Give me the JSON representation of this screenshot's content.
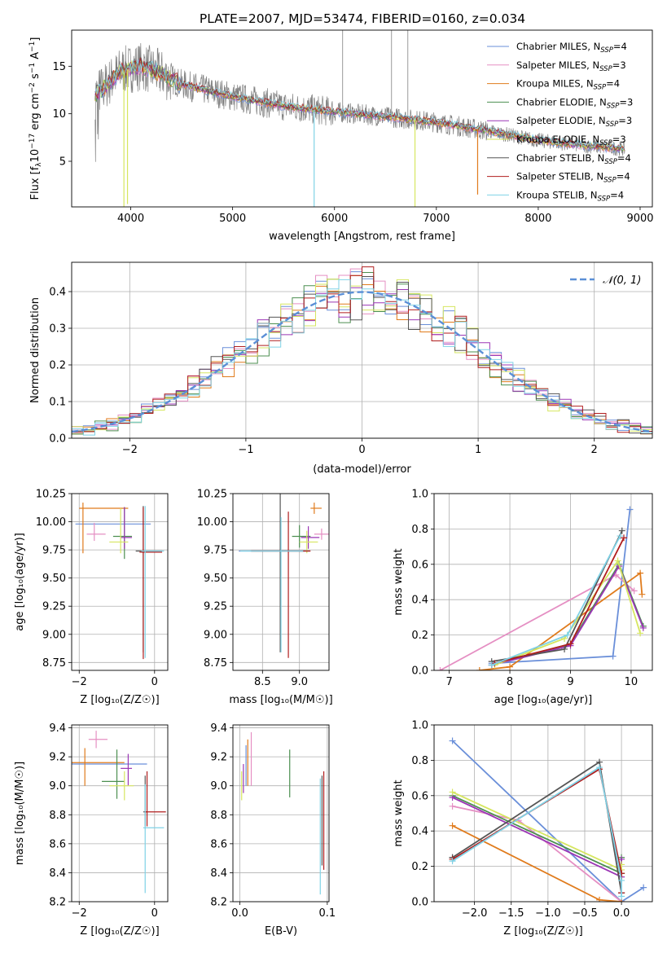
{
  "figure_title": "PLATE=2007, MJD=53474, FIBERID=0160, z=0.034",
  "series_names": [
    "Chabrier MILES",
    "Salpeter MILES",
    "Kroupa MILES",
    "Chabrier ELODIE",
    "Salpeter ELODIE",
    "Kroupa ELODIE",
    "Chabrier STELIB",
    "Salpeter STELIB",
    "Kroupa STELIB"
  ],
  "series_colors": [
    "#6a8fd9",
    "#e58fc3",
    "#e07b1c",
    "#4c8f50",
    "#9b36b5",
    "#d6e660",
    "#555555",
    "#b01e1e",
    "#7fd2e6"
  ],
  "chart_data": [
    {
      "id": "spectrum",
      "type": "line",
      "title": "PLATE=2007, MJD=53474, FIBERID=0160, z=0.034",
      "xlabel": "wavelength [Angstrom, rest frame]",
      "ylabel": "Flux [f_λ 10^-17 erg cm^-2 s^-1 A^-1]",
      "xlim": [
        3420,
        9120
      ],
      "ylim": [
        0.2,
        18.8
      ],
      "xticks": [
        4000,
        5000,
        6000,
        7000,
        8000,
        9000
      ],
      "yticks": [
        5,
        10,
        15
      ],
      "legend": "top-right",
      "legend_entries": [
        {
          "label": "Chabrier MILES",
          "nssp": "4"
        },
        {
          "label": "Salpeter MILES",
          "nssp": "3"
        },
        {
          "label": "Kroupa MILES",
          "nssp": "4"
        },
        {
          "label": "Chabrier ELODIE",
          "nssp": "3"
        },
        {
          "label": "Salpeter ELODIE",
          "nssp": "3"
        },
        {
          "label": "Kroupa ELODIE",
          "nssp": "3"
        },
        {
          "label": "Chabrier STELIB",
          "nssp": "4"
        },
        {
          "label": "Salpeter STELIB",
          "nssp": "4"
        },
        {
          "label": "Kroupa STELIB",
          "nssp": "4"
        }
      ],
      "continuum": {
        "x": [
          3650,
          3720,
          3900,
          4100,
          4300,
          4500,
          5000,
          5500,
          6000,
          6500,
          7000,
          7500,
          8000,
          8500,
          8850
        ],
        "y": [
          12.0,
          12.6,
          14.5,
          15.0,
          14.2,
          13.1,
          11.8,
          10.8,
          10.2,
          9.7,
          9.1,
          8.2,
          7.2,
          6.6,
          6.3
        ]
      },
      "absorption_lines": [
        {
          "x": 3933,
          "y": 0.2
        },
        {
          "x": 3968,
          "y": 0.5
        },
        {
          "x": 5800,
          "y": 0.2
        },
        {
          "x": 6790,
          "y": 0.2
        },
        {
          "x": 7405,
          "y": 1.5
        }
      ],
      "emission_spikes": [
        {
          "x": 6080,
          "y": 18.8
        },
        {
          "x": 6560,
          "y": 18.8
        },
        {
          "x": 6720,
          "y": 18.8
        }
      ]
    },
    {
      "id": "residuals",
      "type": "histogram",
      "xlabel": "(data-model)/error",
      "ylabel": "Normed distribution",
      "xlim": [
        -2.5,
        2.5
      ],
      "ylim": [
        0,
        0.48
      ],
      "xticks": [
        -2,
        -1,
        0,
        1,
        2
      ],
      "yticks": [
        0.0,
        0.1,
        0.2,
        0.3,
        0.4
      ],
      "bin_width": 0.1,
      "legend": "top-right",
      "reference_label": "𝒩(0, 1)"
    },
    {
      "id": "age_vs_Z",
      "type": "scatter",
      "xlabel": "Z [log₁₀(Z/Z☉)]",
      "ylabel": "age  [log₁₀(age/yr)]",
      "xlim": [
        -2.2,
        0.35
      ],
      "ylim": [
        8.68,
        10.25
      ],
      "xticks": [
        -2,
        0
      ],
      "yticks": [
        8.75,
        9.0,
        9.25,
        9.5,
        9.75,
        10.0,
        10.25
      ],
      "points": [
        {
          "x": -0.2,
          "y": 9.98,
          "xe": [
            1.9,
            0.1
          ],
          "ye": [
            0,
            0
          ]
        },
        {
          "x": -1.6,
          "y": 9.89,
          "xe": [
            0.2,
            0.3
          ],
          "ye": [
            0.06,
            0.1
          ]
        },
        {
          "x": -1.9,
          "y": 10.12,
          "xe": [
            0.1,
            1.2
          ],
          "ye": [
            0.4,
            0.05
          ]
        },
        {
          "x": -0.8,
          "y": 9.87,
          "xe": [
            0.3,
            0.2
          ],
          "ye": [
            0.2,
            0.26
          ]
        },
        {
          "x": -0.8,
          "y": 9.86,
          "xe": [
            0.1,
            0.2
          ],
          "ye": [
            0.1,
            0.27
          ]
        },
        {
          "x": -0.9,
          "y": 9.82,
          "xe": [
            0.3,
            0.2
          ],
          "ye": [
            0.1,
            0.3
          ]
        },
        {
          "x": -0.3,
          "y": 9.74,
          "xe": [
            0.2,
            0.5
          ],
          "ye": [
            0.9,
            0.4
          ]
        },
        {
          "x": -0.3,
          "y": 9.73,
          "xe": [
            0.1,
            0.5
          ],
          "ye": [
            0.95,
            0.4
          ]
        },
        {
          "x": -0.25,
          "y": 9.74,
          "xe": [
            0.1,
            0.5
          ],
          "ye": [
            0.95,
            0.4
          ]
        }
      ]
    },
    {
      "id": "age_vs_mass",
      "type": "scatter",
      "xlabel": "mass [log₁₀(M/M☉)]",
      "ylabel": "",
      "xlim": [
        8.1,
        9.4
      ],
      "ylim": [
        8.68,
        10.25
      ],
      "xticks": [
        8.5,
        9.0
      ],
      "yticks": [
        8.75,
        9.0,
        9.25,
        9.5,
        9.75,
        10.0,
        10.25
      ],
      "points": [
        {
          "x": 8.78,
          "y": 9.74,
          "xe": [
            0.6,
            0.3
          ],
          "ye": [
            0,
            0
          ]
        },
        {
          "x": 9.3,
          "y": 9.89,
          "xe": [
            0.1,
            0.1
          ],
          "ye": [
            0.05,
            0.05
          ]
        },
        {
          "x": 9.2,
          "y": 10.12,
          "xe": [
            0.05,
            0.1
          ],
          "ye": [
            0.05,
            0.05
          ]
        },
        {
          "x": 9.0,
          "y": 9.87,
          "xe": [
            0.1,
            0.15
          ],
          "ye": [
            0.1,
            0.1
          ]
        },
        {
          "x": 9.12,
          "y": 9.86,
          "xe": [
            0.1,
            0.15
          ],
          "ye": [
            0.1,
            0.1
          ]
        },
        {
          "x": 9.1,
          "y": 9.82,
          "xe": [
            0.1,
            0.15
          ],
          "ye": [
            0.1,
            0.1
          ]
        },
        {
          "x": 8.74,
          "y": 9.74,
          "xe": [
            0.4,
            0.4
          ],
          "ye": [
            0.9,
            2.4
          ]
        },
        {
          "x": 8.85,
          "y": 9.74,
          "xe": [
            0.5,
            0.3
          ],
          "ye": [
            0.95,
            0.35
          ]
        },
        {
          "x": 8.75,
          "y": 9.74,
          "xe": [
            0.55,
            0.3
          ],
          "ye": [
            0.9,
            0.3
          ]
        }
      ]
    },
    {
      "id": "weight_vs_age",
      "type": "line",
      "xlabel": "age  [log₁₀(age/yr)]",
      "ylabel": "mass weight",
      "xlim": [
        6.75,
        10.35
      ],
      "ylim": [
        0,
        1.0
      ],
      "xticks": [
        7,
        8,
        9,
        10
      ],
      "yticks": [
        0.0,
        0.2,
        0.4,
        0.6,
        0.8,
        1.0
      ],
      "series": [
        {
          "name": "Chabrier MILES",
          "x": [
            7.7,
            9.7,
            9.98
          ],
          "y": [
            0.04,
            0.08,
            0.91
          ]
        },
        {
          "name": "Salpeter MILES",
          "x": [
            6.85,
            9.75,
            10.05
          ],
          "y": [
            0.0,
            0.54,
            0.45
          ]
        },
        {
          "name": "Kroupa MILES",
          "x": [
            7.5,
            8.0,
            10.15,
            10.18
          ],
          "y": [
            0.0,
            0.02,
            0.55,
            0.43
          ]
        },
        {
          "name": "Chabrier ELODIE",
          "x": [
            7.7,
            9.0,
            9.8,
            10.2
          ],
          "y": [
            0.03,
            0.15,
            0.6,
            0.25
          ]
        },
        {
          "name": "Salpeter ELODIE",
          "x": [
            7.7,
            9.0,
            9.8,
            10.2
          ],
          "y": [
            0.03,
            0.14,
            0.59,
            0.24
          ]
        },
        {
          "name": "Kroupa ELODIE",
          "x": [
            7.75,
            8.9,
            9.78,
            10.15
          ],
          "y": [
            0.03,
            0.18,
            0.62,
            0.21
          ]
        },
        {
          "name": "Chabrier STELIB",
          "x": [
            7.7,
            8.9,
            9.85
          ],
          "y": [
            0.05,
            0.12,
            0.79
          ]
        },
        {
          "name": "Salpeter STELIB",
          "x": [
            7.75,
            9.0,
            9.88
          ],
          "y": [
            0.04,
            0.15,
            0.75
          ]
        },
        {
          "name": "Kroupa STELIB",
          "x": [
            7.7,
            8.95,
            9.82
          ],
          "y": [
            0.03,
            0.2,
            0.76
          ]
        }
      ]
    },
    {
      "id": "mass_vs_Z",
      "type": "scatter",
      "xlabel": "Z [log₁₀(Z/Z☉)]",
      "ylabel": "mass [log₁₀(M/M☉)]",
      "xlim": [
        -2.2,
        0.35
      ],
      "ylim": [
        8.2,
        9.42
      ],
      "xticks": [
        -2,
        0
      ],
      "yticks": [
        8.2,
        8.4,
        8.6,
        8.8,
        9.0,
        9.2,
        9.4
      ],
      "points": [
        {
          "x": -0.5,
          "y": 9.15,
          "xe": [
            1.7,
            0.3
          ],
          "ye": [
            0,
            0
          ]
        },
        {
          "x": -1.55,
          "y": 9.32,
          "xe": [
            0.2,
            0.3
          ],
          "ye": [
            0.06,
            0.06
          ]
        },
        {
          "x": -1.85,
          "y": 9.16,
          "xe": [
            0.35,
            1.05
          ],
          "ye": [
            0.16,
            0.1
          ]
        },
        {
          "x": -1.0,
          "y": 9.03,
          "xe": [
            0.4,
            0.2
          ],
          "ye": [
            0.12,
            0.22
          ]
        },
        {
          "x": -0.7,
          "y": 9.12,
          "xe": [
            0.2,
            0.1
          ],
          "ye": [
            0.12,
            0.1
          ]
        },
        {
          "x": -0.8,
          "y": 9.0,
          "xe": [
            0.4,
            0.25
          ],
          "ye": [
            0.1,
            0.1
          ]
        },
        {
          "x": -0.25,
          "y": 8.82,
          "xe": [
            0.05,
            0.05
          ],
          "ye": [
            0.1,
            0.25
          ]
        },
        {
          "x": -0.2,
          "y": 8.82,
          "xe": [
            0.05,
            0.5
          ],
          "ye": [
            0.1,
            0.28
          ]
        },
        {
          "x": -0.25,
          "y": 8.71,
          "xe": [
            0.05,
            0.5
          ],
          "ye": [
            0.45,
            0.3
          ]
        }
      ]
    },
    {
      "id": "mass_vs_EBV",
      "type": "scatter",
      "xlabel": "E(B-V)",
      "ylabel": "",
      "xlim": [
        -0.008,
        0.102
      ],
      "ylim": [
        8.2,
        9.42
      ],
      "xticks": [
        0.0,
        0.1
      ],
      "yticks": [
        8.2,
        8.4,
        8.6,
        8.8,
        9.0,
        9.2,
        9.4
      ],
      "points": [
        {
          "x": 0.007,
          "y": 9.1,
          "xe": [
            0,
            0
          ],
          "ye": [
            0.1,
            0.18
          ]
        },
        {
          "x": 0.013,
          "y": 9.2,
          "xe": [
            0,
            0
          ],
          "ye": [
            0.2,
            0.17
          ]
        },
        {
          "x": 0.009,
          "y": 9.15,
          "xe": [
            0,
            0
          ],
          "ye": [
            0.15,
            0.17
          ]
        },
        {
          "x": 0.057,
          "y": 9.08,
          "xe": [
            0,
            0
          ],
          "ye": [
            0.16,
            0.17
          ]
        },
        {
          "x": 0.004,
          "y": 9.05,
          "xe": [
            0,
            0
          ],
          "ye": [
            0.1,
            0.1
          ]
        },
        {
          "x": 0.002,
          "y": 9.0,
          "xe": [
            0,
            0
          ],
          "ye": [
            0.1,
            0.1
          ]
        },
        {
          "x": 0.094,
          "y": 8.75,
          "xe": [
            0,
            0
          ],
          "ye": [
            0.3,
            0.32
          ]
        },
        {
          "x": 0.096,
          "y": 8.75,
          "xe": [
            0,
            0
          ],
          "ye": [
            0.33,
            0.35
          ]
        },
        {
          "x": 0.092,
          "y": 8.7,
          "xe": [
            0,
            0
          ],
          "ye": [
            0.45,
            0.35
          ]
        }
      ]
    },
    {
      "id": "weight_vs_Z",
      "type": "line",
      "xlabel": "Z [log₁₀(Z/Z☉)]",
      "ylabel": "mass weight",
      "xlim": [
        -2.55,
        0.42
      ],
      "ylim": [
        0,
        1.0
      ],
      "xticks": [
        -2.0,
        -1.5,
        -1.0,
        -0.5,
        0.0
      ],
      "yticks": [
        0.0,
        0.2,
        0.4,
        0.6,
        0.8,
        1.0
      ],
      "series": [
        {
          "name": "Chabrier MILES",
          "x": [
            -2.3,
            0.0,
            0.3
          ],
          "y": [
            0.91,
            0.0,
            0.08
          ]
        },
        {
          "name": "Salpeter MILES",
          "x": [
            -2.3,
            -1.4,
            0.0
          ],
          "y": [
            0.54,
            0.46,
            0.0
          ]
        },
        {
          "name": "Kroupa MILES",
          "x": [
            -2.3,
            -0.3,
            0.0
          ],
          "y": [
            0.43,
            0.01,
            0.0
          ]
        },
        {
          "name": "Chabrier ELODIE",
          "x": [
            -2.3,
            0.0,
            0.0
          ],
          "y": [
            0.6,
            0.16,
            0.25
          ]
        },
        {
          "name": "Salpeter ELODIE",
          "x": [
            -2.3,
            0.0,
            0.0
          ],
          "y": [
            0.59,
            0.14,
            0.24
          ]
        },
        {
          "name": "Kroupa ELODIE",
          "x": [
            -2.3,
            0.0,
            0.0
          ],
          "y": [
            0.62,
            0.18,
            0.21
          ]
        },
        {
          "name": "Chabrier STELIB",
          "x": [
            -2.3,
            -2.3,
            -0.3,
            0.0,
            0.0
          ],
          "y": [
            0.25,
            0.25,
            0.79,
            0.05,
            0.05
          ]
        },
        {
          "name": "Salpeter STELIB",
          "x": [
            -2.3,
            -0.3,
            0.0,
            0.0
          ],
          "y": [
            0.24,
            0.75,
            0.16,
            0.05
          ]
        },
        {
          "name": "Kroupa STELIB",
          "x": [
            -2.3,
            -0.3,
            0.0,
            0.0
          ],
          "y": [
            0.23,
            0.76,
            0.12,
            0.03
          ]
        }
      ]
    }
  ]
}
